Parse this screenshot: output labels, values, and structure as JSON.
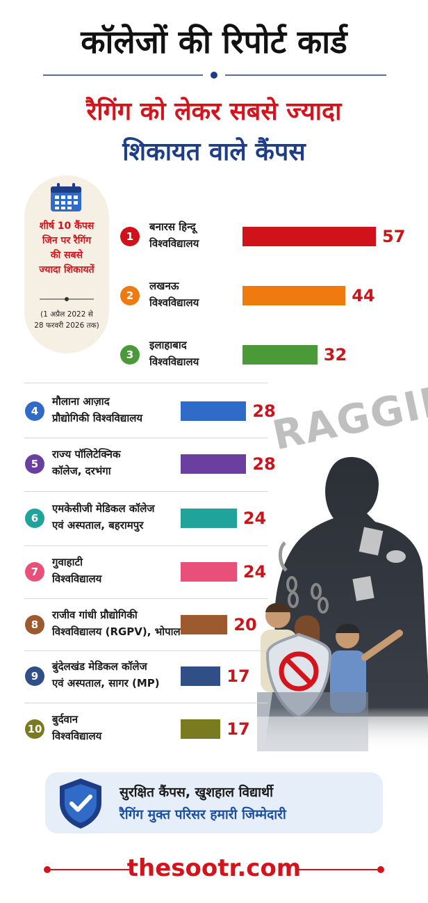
{
  "chart_data": {
    "type": "bar",
    "title": "कॉलेजों की रिपोर्ट कार्ड",
    "subtitle": [
      "रैगिंग को लेकर सबसे ज्यादा",
      "शिकायत वाले कैंपस"
    ],
    "panel_text": "शीर्ष 10 कैंपस\nजिन पर रैगिंग\nकी सबसे\nज्यादा शिकायतें",
    "panel_note": "(1 अप्रैल 2022 से\n28 फरवरी 2026 तक)",
    "ranks": [
      1,
      2,
      3,
      4,
      5,
      6,
      7,
      8,
      9,
      10
    ],
    "categories": [
      "बनारस हिन्दू\nविश्वविद्यालय",
      "लखनऊ\nविश्वविद्यालय",
      "इलाहाबाद\nविश्वविद्यालय",
      "मौलाना आज़ाद\nप्रौद्योगिकी विश्वविद्यालय",
      "राज्य पॉलिटेक्निक\nकॉलेज, दरभंगा",
      "एमकेसीजी मेडिकल कॉलेज\nएवं अस्पताल, बहरामपुर",
      "गुवाहाटी\nविश्वविद्यालय",
      "राजीव गांधी प्रौद्योगिकी\nविश्वविद्यालय (RGPV), भोपाल",
      "बुंदेलखंड मेडिकल कॉलेज\nएवं अस्पताल, सागर (MP)",
      "बुर्दवान\nविश्वविद्यालय"
    ],
    "values": [
      57,
      44,
      32,
      28,
      28,
      24,
      24,
      20,
      17,
      17
    ],
    "colors": [
      "#d0121b",
      "#f07a10",
      "#4a9a3a",
      "#2f6bc7",
      "#6b3fa0",
      "#1fa39a",
      "#e8507a",
      "#9c5a2e",
      "#2f4f86",
      "#7a7a20"
    ],
    "illustration_text": "RAGGING",
    "footer": [
      "सुरक्षित कैंपस, खुशहाल विद्यार्थी",
      "रैगिंग मुक्त परिसर हमारी जिम्मेदारी"
    ],
    "brand": "thesootr.com"
  }
}
